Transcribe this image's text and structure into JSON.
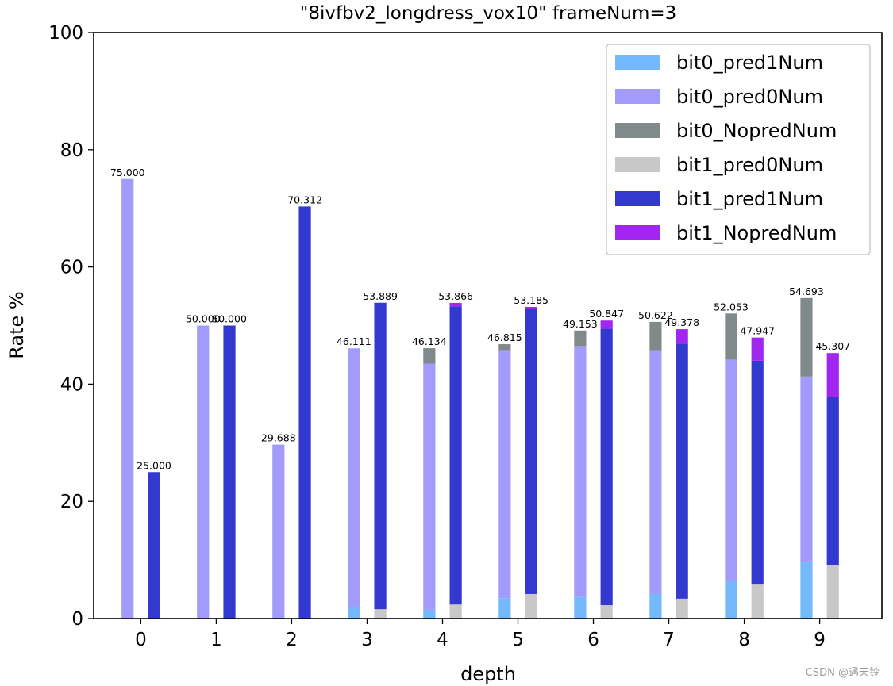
{
  "chart_data": {
    "type": "bar",
    "title": "\"8ivfbv2_longdress_vox10\" frameNum=3",
    "xlabel": "depth",
    "ylabel": "Rate %",
    "ylim": [
      0,
      100
    ],
    "yticks": [
      0,
      20,
      40,
      60,
      80,
      100
    ],
    "categories": [
      "0",
      "1",
      "2",
      "3",
      "4",
      "5",
      "6",
      "7",
      "8",
      "9"
    ],
    "legend_placement": "top-right",
    "groups": [
      {
        "name": "bit0",
        "offset": -0.35,
        "series": [
          {
            "name": "bit0_pred1Num",
            "color": "#74b9fb",
            "values": [
              0,
              0,
              0,
              2.0,
              1.5,
              3.5,
              3.7,
              4.2,
              6.4,
              9.6
            ]
          },
          {
            "name": "bit0_pred0Num",
            "color": "#a29bfb",
            "values": [
              75.0,
              50.0,
              29.688,
              44.111,
              42.0,
              42.315,
              42.8,
              41.6,
              37.8,
              31.7
            ]
          },
          {
            "name": "bit0_NopredNum",
            "color": "#808a8b",
            "values": [
              0,
              0,
              0,
              0,
              2.634,
              1.0,
              2.653,
              4.822,
              7.853,
              13.393
            ]
          }
        ],
        "totals": [
          75.0,
          50.0,
          29.688,
          46.111,
          46.134,
          46.815,
          49.153,
          50.622,
          52.053,
          54.693
        ]
      },
      {
        "name": "bit1",
        "offset": 0,
        "series": [
          {
            "name": "bit1_pred0Num",
            "color": "#c8c8c8",
            "values": [
              0,
              0,
              0,
              1.6,
              2.4,
              4.2,
              2.3,
              3.4,
              5.8,
              9.2
            ]
          },
          {
            "name": "bit1_pred1Num",
            "color": "#3339cf",
            "values": [
              25.0,
              50.0,
              70.312,
              52.289,
              50.866,
              48.585,
              47.147,
              43.5,
              38.2,
              28.6
            ]
          },
          {
            "name": "bit1_NopredNum",
            "color": "#a026f0",
            "values": [
              0,
              0,
              0,
              0,
              0.6,
              0.4,
              1.4,
              2.478,
              3.947,
              7.507
            ]
          }
        ],
        "totals": [
          25.0,
          50.0,
          70.312,
          53.889,
          53.866,
          53.185,
          50.847,
          49.378,
          47.947,
          45.307
        ]
      }
    ],
    "legend_order": [
      "bit0_pred1Num",
      "bit0_pred0Num",
      "bit0_NopredNum",
      "bit1_pred0Num",
      "bit1_pred1Num",
      "bit1_NopredNum"
    ],
    "label_decimals": 3
  },
  "watermark": "CSDN @遇天铃"
}
